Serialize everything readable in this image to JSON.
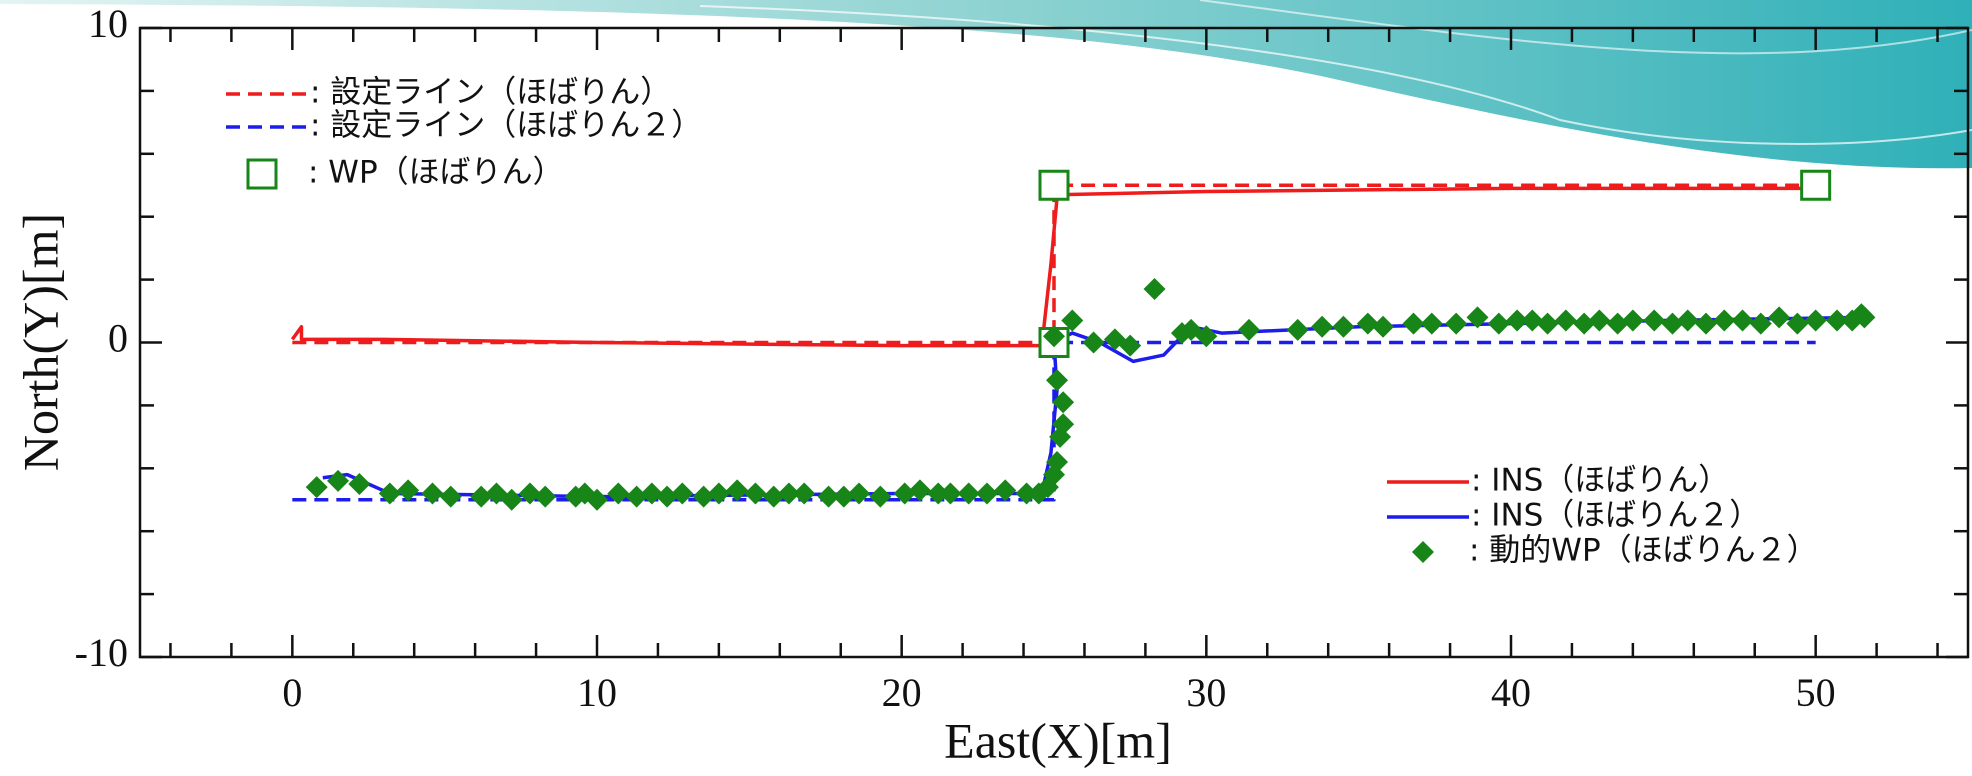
{
  "chart_data": {
    "type": "line",
    "x_label": "East(X)[m]",
    "y_label": "North(Y)[m]",
    "xlim": [
      -5,
      55
    ],
    "ylim": [
      -10,
      10
    ],
    "xticks": [
      0,
      10,
      20,
      30,
      40,
      50
    ],
    "yticks": [
      -10,
      0,
      10
    ],
    "xminorticks": [
      -4,
      -2,
      2,
      4,
      6,
      8,
      12,
      14,
      16,
      18,
      22,
      24,
      26,
      28,
      32,
      34,
      36,
      38,
      42,
      44,
      46,
      48,
      52,
      54
    ],
    "yminorticks": [
      -8,
      -6,
      -4,
      -2,
      2,
      4,
      6,
      8
    ],
    "series": [
      {
        "name": ": 設定ライン（ほばりん）",
        "color": "#ee1c1c",
        "style": "dashed",
        "legend": "upper left",
        "x": [
          0,
          25,
          25,
          50
        ],
        "values": [
          0,
          0,
          5,
          5
        ]
      },
      {
        "name": ": 設定ライン（ほばりん２）",
        "color": "#1c1ced",
        "style": "dashed",
        "legend": "upper left",
        "x": [
          0,
          25,
          25,
          50
        ],
        "values": [
          -5,
          -5,
          0,
          0
        ]
      },
      {
        "name": ": WP（ほばりん）",
        "color": "#178517",
        "marker": "square",
        "legend": "upper left",
        "x": [
          25,
          50,
          25
        ],
        "values": [
          5,
          5,
          0
        ]
      },
      {
        "name": ": INS（ほばりん）",
        "color": "#ee1c1c",
        "style": "solid",
        "legend": "lower right",
        "x": [
          0,
          0.3,
          0.3,
          3,
          10,
          20,
          24.6,
          24.9,
          25.1,
          25.3,
          30,
          40,
          50
        ],
        "values": [
          0.1,
          0.5,
          0.1,
          0.1,
          0,
          -0.1,
          -0.1,
          2.5,
          4.6,
          4.7,
          4.8,
          4.9,
          4.9
        ]
      },
      {
        "name": ": INS（ほばりん２）",
        "color": "#1c1ced",
        "style": "solid",
        "legend": "lower right",
        "x": [
          1,
          1.8,
          2.5,
          3.2,
          10,
          20,
          24.6,
          24.9,
          25.1,
          25.0,
          25.6,
          26.5,
          27.6,
          28.6,
          29.5,
          30.5,
          35,
          40,
          45,
          51.6
        ],
        "values": [
          -4.3,
          -4.2,
          -4.5,
          -4.8,
          -4.9,
          -4.8,
          -4.8,
          -3.5,
          -1.5,
          0,
          0.3,
          0,
          -0.6,
          -0.4,
          0.5,
          0.3,
          0.5,
          0.6,
          0.7,
          0.8
        ]
      },
      {
        "name": ": 動的WP（ほばりん２）",
        "color": "#178517",
        "marker": "diamond",
        "legend": "lower right",
        "x": [
          0.8,
          1.5,
          2.2,
          3.2,
          3.8,
          4.6,
          5.2,
          6.2,
          6.7,
          7.2,
          7.8,
          8.3,
          9.3,
          9.6,
          10.0,
          10.7,
          11.3,
          11.8,
          12.3,
          12.8,
          13.5,
          14.0,
          14.6,
          15.2,
          15.8,
          16.3,
          16.8,
          17.6,
          18.1,
          18.6,
          19.3,
          20.1,
          20.6,
          21.2,
          21.6,
          22.2,
          22.8,
          23.4,
          24.1,
          24.5,
          24.8,
          25.0,
          25.1,
          25.2,
          25.3,
          25.3,
          25.1,
          25.0,
          25.6,
          26.3,
          27.0,
          27.5,
          28.3,
          29.2,
          29.5,
          30.0,
          31.4,
          33.0,
          33.8,
          34.5,
          35.3,
          35.8,
          36.8,
          37.4,
          38.2,
          38.9,
          39.6,
          40.2,
          40.7,
          41.2,
          41.8,
          42.4,
          42.9,
          43.5,
          44.0,
          44.7,
          45.3,
          45.8,
          46.4,
          47.0,
          47.6,
          48.2,
          48.8,
          49.4,
          50.0,
          50.7,
          51.2,
          51.5,
          51.6
        ],
        "values": [
          -4.6,
          -4.4,
          -4.5,
          -4.8,
          -4.7,
          -4.8,
          -4.9,
          -4.9,
          -4.8,
          -5.0,
          -4.8,
          -4.9,
          -4.9,
          -4.8,
          -5.0,
          -4.8,
          -4.9,
          -4.8,
          -4.9,
          -4.8,
          -4.9,
          -4.8,
          -4.7,
          -4.8,
          -4.9,
          -4.8,
          -4.8,
          -4.9,
          -4.9,
          -4.8,
          -4.9,
          -4.8,
          -4.7,
          -4.8,
          -4.8,
          -4.8,
          -4.8,
          -4.7,
          -4.8,
          -4.8,
          -4.6,
          -4.2,
          -3.8,
          -3.0,
          -2.6,
          -1.9,
          -1.2,
          0.2,
          0.7,
          0.0,
          0.1,
          -0.1,
          1.7,
          0.3,
          0.4,
          0.2,
          0.4,
          0.4,
          0.5,
          0.5,
          0.6,
          0.5,
          0.6,
          0.6,
          0.6,
          0.8,
          0.6,
          0.7,
          0.7,
          0.6,
          0.7,
          0.6,
          0.7,
          0.6,
          0.7,
          0.7,
          0.6,
          0.7,
          0.6,
          0.7,
          0.7,
          0.6,
          0.8,
          0.6,
          0.7,
          0.7,
          0.7,
          0.9,
          0.8
        ]
      }
    ]
  }
}
